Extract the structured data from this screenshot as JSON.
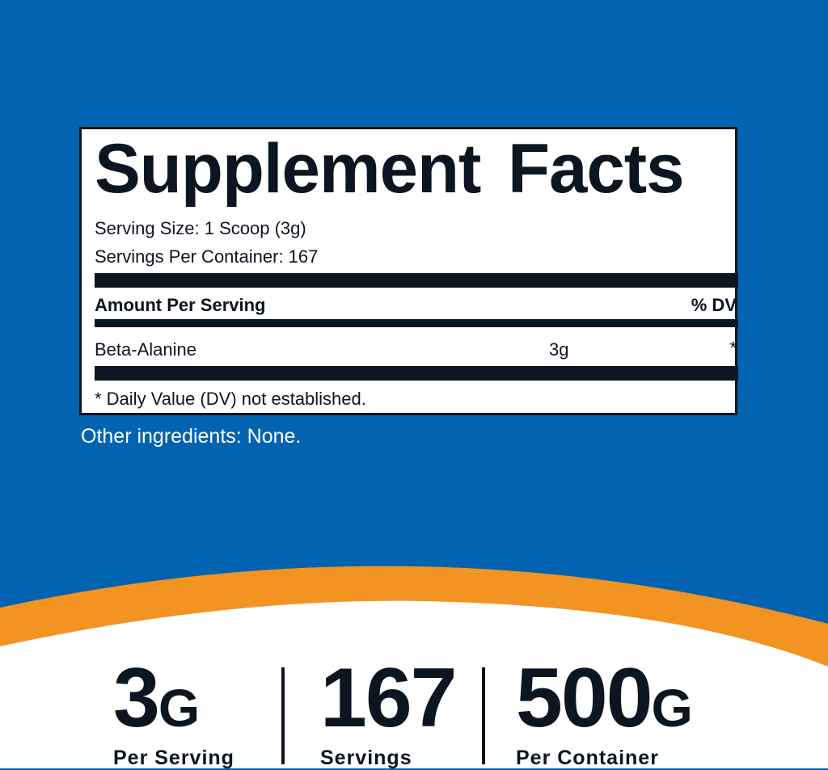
{
  "colors": {
    "background_blue": "#0263b0",
    "accent_orange": "#f39322",
    "text_dark": "#0c1520"
  },
  "facts": {
    "title_word1": "Supplement",
    "title_word2": "Facts",
    "serving_size": "Serving Size: 1 Scoop (3g)",
    "servings_per_container": "Servings Per Container: 167",
    "amount_header": "Amount Per Serving",
    "dv_header": "% DV",
    "ingredients": [
      {
        "name": "Beta-Alanine",
        "amount": "3g",
        "dv": "*"
      }
    ],
    "footnote": "* Daily Value (DV) not established."
  },
  "other_ingredients": "Other ingredients: None.",
  "stats": [
    {
      "value": "3",
      "unit": "G",
      "label": "Per Serving"
    },
    {
      "value": "167",
      "unit": "",
      "label": "Servings"
    },
    {
      "value": "500",
      "unit": "G",
      "label": "Per Container"
    }
  ]
}
